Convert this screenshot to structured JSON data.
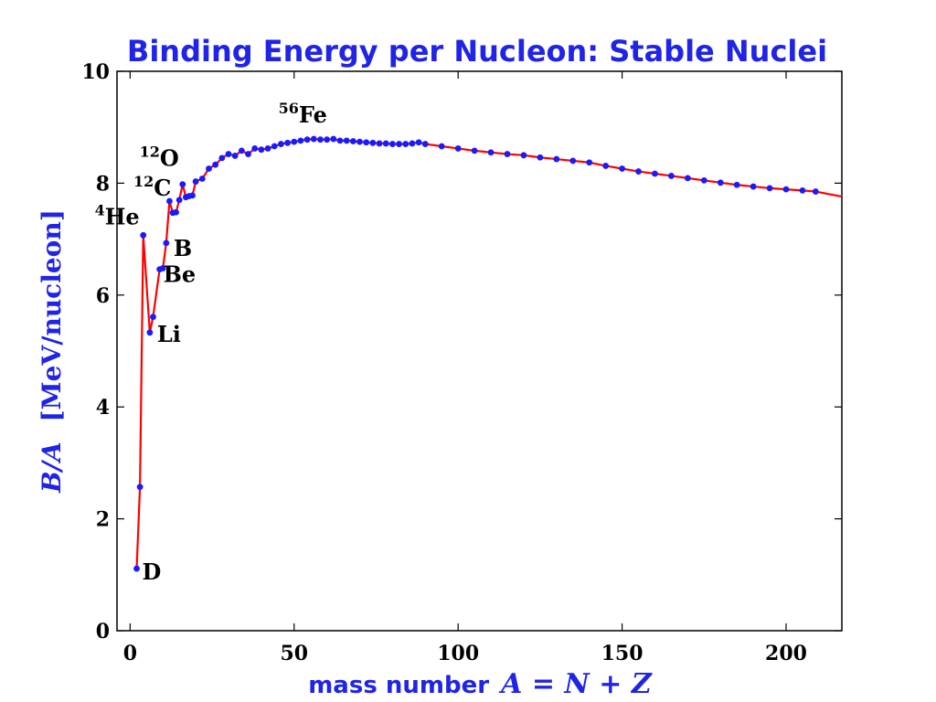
{
  "chart_data": {
    "type": "line",
    "title": "Binding Energy per Nucleon: Stable Nuclei",
    "xlabel": {
      "text": "mass number",
      "math": "A = N + Z"
    },
    "ylabel": {
      "math": "B/A",
      "unit": "[MeV/nucleon]"
    },
    "xlim": [
      -4,
      217
    ],
    "ylim": [
      0,
      10
    ],
    "xticks": [
      0,
      50,
      100,
      150,
      200
    ],
    "yticks": [
      0,
      2,
      4,
      6,
      8,
      10
    ],
    "xtick_labels": [
      "0",
      "50",
      "100",
      "150",
      "200"
    ],
    "ytick_labels": [
      "0",
      "2",
      "4",
      "6",
      "8",
      "10"
    ],
    "grid": false,
    "series": [
      {
        "line_color": "#ff0000",
        "marker_color": "#1a1aff",
        "x": [
          2,
          3,
          4,
          6,
          7,
          9,
          10,
          11,
          12,
          13,
          14,
          15,
          16,
          17,
          18,
          19,
          20,
          22,
          24,
          26,
          28,
          30,
          32,
          34,
          36,
          38,
          40,
          42,
          44,
          46,
          48,
          50,
          52,
          54,
          56,
          58,
          60,
          62,
          64,
          66,
          68,
          70,
          72,
          74,
          76,
          78,
          80,
          82,
          84,
          86,
          88,
          90,
          95,
          100,
          105,
          110,
          115,
          120,
          125,
          130,
          135,
          140,
          145,
          150,
          155,
          160,
          165,
          170,
          175,
          180,
          185,
          190,
          195,
          200,
          205,
          209
        ],
        "y": [
          1.11,
          2.57,
          7.07,
          5.33,
          5.61,
          6.46,
          6.48,
          6.93,
          7.68,
          7.47,
          7.48,
          7.7,
          7.98,
          7.75,
          7.77,
          7.78,
          8.03,
          8.08,
          8.26,
          8.33,
          8.45,
          8.52,
          8.49,
          8.58,
          8.52,
          8.62,
          8.6,
          8.62,
          8.66,
          8.7,
          8.72,
          8.74,
          8.76,
          8.78,
          8.79,
          8.78,
          8.78,
          8.79,
          8.76,
          8.76,
          8.75,
          8.74,
          8.73,
          8.72,
          8.71,
          8.71,
          8.7,
          8.7,
          8.7,
          8.71,
          8.73,
          8.7,
          8.66,
          8.62,
          8.58,
          8.55,
          8.52,
          8.5,
          8.46,
          8.43,
          8.4,
          8.37,
          8.31,
          8.26,
          8.21,
          8.17,
          8.13,
          8.09,
          8.05,
          8.01,
          7.97,
          7.94,
          7.91,
          7.89,
          7.87,
          7.85
        ]
      }
    ],
    "tail_line": {
      "x": [
        209,
        217
      ],
      "y": [
        7.85,
        7.76
      ]
    },
    "annotations": [
      {
        "sup": "",
        "text": "D",
        "x": 2,
        "y": 1.11
      },
      {
        "sup": "4",
        "text": "He",
        "x": 4,
        "y": 7.07
      },
      {
        "sup": "",
        "text": "Li",
        "x": 6,
        "y": 5.33
      },
      {
        "sup": "",
        "text": "Be",
        "x": 9,
        "y": 6.46
      },
      {
        "sup": "",
        "text": "B",
        "x": 11,
        "y": 6.93
      },
      {
        "sup": "12",
        "text": "C",
        "x": 12,
        "y": 7.68
      },
      {
        "sup": "12",
        "text": "O",
        "x": 16,
        "y": 7.98
      },
      {
        "sup": "56",
        "text": "Fe",
        "x": 56,
        "y": 8.79
      }
    ]
  }
}
